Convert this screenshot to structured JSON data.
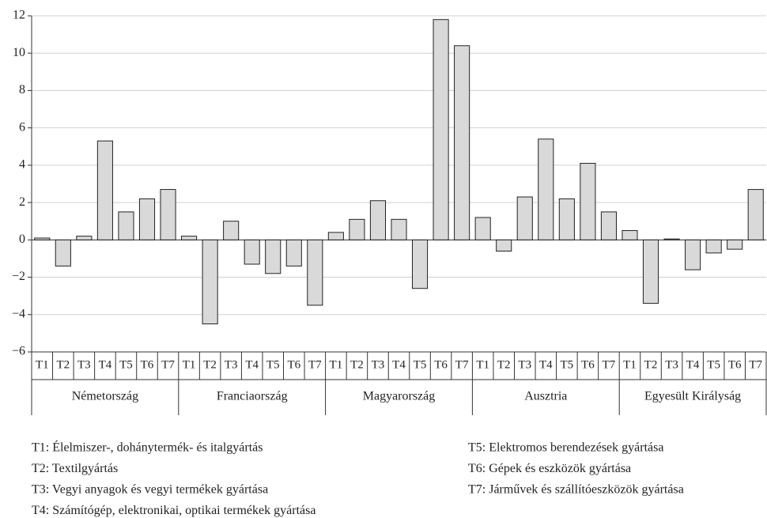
{
  "chart_data": {
    "type": "bar",
    "categories": [
      "T1",
      "T2",
      "T3",
      "T4",
      "T5",
      "T6",
      "T7"
    ],
    "groups": [
      {
        "name": "Németország",
        "values": [
          0.1,
          -1.4,
          0.2,
          5.3,
          1.5,
          2.2,
          2.7
        ]
      },
      {
        "name": "Franciaország",
        "values": [
          0.2,
          -4.5,
          1.0,
          -1.3,
          -1.8,
          -1.4,
          -3.5
        ]
      },
      {
        "name": "Magyarország",
        "values": [
          0.4,
          1.1,
          2.1,
          1.1,
          -2.6,
          11.8,
          10.4
        ]
      },
      {
        "name": "Ausztria",
        "values": [
          1.2,
          -0.6,
          2.3,
          5.4,
          2.2,
          4.1,
          1.5
        ]
      },
      {
        "name": "Egyesült Királyság",
        "values": [
          0.5,
          -3.4,
          0.05,
          -1.6,
          -0.7,
          -0.5,
          2.7
        ]
      }
    ],
    "color": "#d9d9d9",
    "ylim": [
      -6,
      12
    ],
    "yticks": [
      {
        "value": -6,
        "label": "−6"
      },
      {
        "value": -4,
        "label": "−4"
      },
      {
        "value": -2,
        "label": "−2"
      },
      0,
      2,
      4,
      6,
      8,
      10,
      12
    ],
    "grid": true,
    "notes": [
      "T1: Élelmiszer-, dohánytermék- és italgyártás",
      "T2: Textilgyártás",
      "T3: Vegyi anyagok és vegyi termékek gyártása",
      "T4: Számítógép, elektronikai, optikai termékek gyártása",
      "T5: Elektromos berendezések gyártása",
      "T6: Gépek és eszközök gyártása",
      "T7: Járművek és szállítóeszközök gyártása"
    ]
  }
}
